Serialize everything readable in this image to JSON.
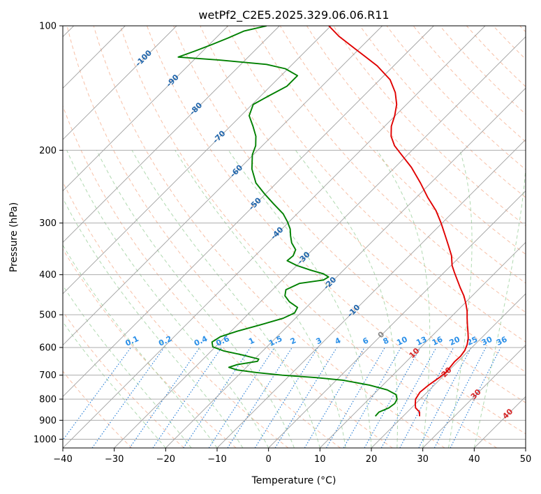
{
  "chart_data": {
    "type": "line",
    "title": "wetPf2_C2E5.2025.329.06.06.R11",
    "xlabel": "Temperature (°C)",
    "ylabel": "Pressure (hPa)",
    "xlim": [
      -40,
      50
    ],
    "ylim": [
      1050,
      100
    ],
    "y_scale": "log",
    "grid": true,
    "x_ticks": [
      -40,
      -30,
      -20,
      -10,
      0,
      10,
      20,
      30,
      40,
      50
    ],
    "y_ticks": [
      100,
      200,
      300,
      400,
      500,
      600,
      700,
      800,
      900,
      1000
    ],
    "skew": 45,
    "colors": {
      "temperature": "#e00000",
      "dewpoint": "#008000",
      "isotherm": "#a0a0a0",
      "dry_adiabat": "#f4a582",
      "moist_adiabat": "#8fc98f",
      "mixing_ratio": "#1e78d4",
      "label_isotherm": "#2166ac",
      "label_mixing": "#2a8fe8",
      "label_warm": "#d62728",
      "label_zero": "#888888"
    },
    "isotherm_labels": [
      {
        "t": -100,
        "text": "-100"
      },
      {
        "t": -90,
        "text": "-90"
      },
      {
        "t": -80,
        "text": "-80"
      },
      {
        "t": -70,
        "text": "-70"
      },
      {
        "t": -60,
        "text": "-60"
      },
      {
        "t": -50,
        "text": "-50"
      },
      {
        "t": -40,
        "text": "-40"
      },
      {
        "t": -30,
        "text": "-30"
      },
      {
        "t": -20,
        "text": "-20"
      },
      {
        "t": -10,
        "text": "-10"
      },
      {
        "t": 0,
        "text": "0"
      },
      {
        "t": 10,
        "text": "10"
      },
      {
        "t": 20,
        "text": "20"
      },
      {
        "t": 30,
        "text": "30"
      },
      {
        "t": 40,
        "text": "40"
      }
    ],
    "mixing_ratios": [
      0.1,
      0.2,
      0.4,
      0.6,
      1,
      1.5,
      2,
      3,
      4,
      6,
      8,
      10,
      13,
      16,
      20,
      25,
      30,
      36
    ],
    "mixing_ratio_labels": [
      "0.1",
      "0.2",
      "0.4",
      "0.6",
      "1",
      "1.5",
      "2",
      "3",
      "4",
      "6",
      "8",
      "10",
      "13",
      "16",
      "20",
      "25",
      "30",
      "36"
    ],
    "series": [
      {
        "name": "",
        "key": "temperature",
        "points": [
          [
            880,
            23.2
          ],
          [
            860,
            22.4
          ],
          [
            840,
            20.8
          ],
          [
            820,
            19.9
          ],
          [
            800,
            19.1
          ],
          [
            770,
            18.6
          ],
          [
            740,
            18.9
          ],
          [
            710,
            19.5
          ],
          [
            690,
            19.8
          ],
          [
            670,
            19.6
          ],
          [
            650,
            19.4
          ],
          [
            630,
            19.5
          ],
          [
            610,
            19.2
          ],
          [
            590,
            18.5
          ],
          [
            570,
            17.5
          ],
          [
            550,
            16.2
          ],
          [
            530,
            14.8
          ],
          [
            510,
            13.4
          ],
          [
            490,
            12.0
          ],
          [
            470,
            10.3
          ],
          [
            450,
            8.4
          ],
          [
            430,
            6.1
          ],
          [
            410,
            3.8
          ],
          [
            395,
            2.0
          ],
          [
            380,
            0.2
          ],
          [
            360,
            -1.8
          ],
          [
            340,
            -4.4
          ],
          [
            320,
            -7.2
          ],
          [
            300,
            -10.2
          ],
          [
            280,
            -13.6
          ],
          [
            260,
            -17.8
          ],
          [
            240,
            -22.0
          ],
          [
            220,
            -26.8
          ],
          [
            205,
            -31.2
          ],
          [
            195,
            -34.3
          ],
          [
            185,
            -36.8
          ],
          [
            175,
            -38.7
          ],
          [
            165,
            -40.1
          ],
          [
            155,
            -41.9
          ],
          [
            145,
            -44.5
          ],
          [
            135,
            -48.0
          ],
          [
            125,
            -53.2
          ],
          [
            118,
            -57.8
          ],
          [
            112,
            -62.0
          ],
          [
            106,
            -66.4
          ],
          [
            100,
            -70.4
          ]
        ]
      },
      {
        "name": "",
        "key": "dewpoint",
        "points": [
          [
            880,
            14.6
          ],
          [
            860,
            14.5
          ],
          [
            840,
            15.6
          ],
          [
            820,
            15.9
          ],
          [
            800,
            15.5
          ],
          [
            780,
            14.4
          ],
          [
            760,
            11.8
          ],
          [
            740,
            7.4
          ],
          [
            720,
            1.3
          ],
          [
            710,
            -4.2
          ],
          [
            700,
            -11.5
          ],
          [
            690,
            -17.0
          ],
          [
            680,
            -21.3
          ],
          [
            670,
            -23.4
          ],
          [
            660,
            -22.3
          ],
          [
            648,
            -19.0
          ],
          [
            640,
            -19.2
          ],
          [
            625,
            -23.3
          ],
          [
            612,
            -27.5
          ],
          [
            598,
            -30.5
          ],
          [
            582,
            -31.6
          ],
          [
            565,
            -31.0
          ],
          [
            548,
            -28.8
          ],
          [
            530,
            -25.7
          ],
          [
            510,
            -22.4
          ],
          [
            495,
            -21.2
          ],
          [
            480,
            -21.7
          ],
          [
            465,
            -24.4
          ],
          [
            450,
            -26.4
          ],
          [
            435,
            -27.4
          ],
          [
            420,
            -26.0
          ],
          [
            412,
            -22.0
          ],
          [
            405,
            -21.6
          ],
          [
            398,
            -23.2
          ],
          [
            390,
            -26.4
          ],
          [
            380,
            -30.0
          ],
          [
            370,
            -32.8
          ],
          [
            360,
            -32.6
          ],
          [
            348,
            -33.3
          ],
          [
            335,
            -35.4
          ],
          [
            322,
            -37.0
          ],
          [
            310,
            -38.4
          ],
          [
            298,
            -40.3
          ],
          [
            285,
            -42.7
          ],
          [
            270,
            -46.4
          ],
          [
            255,
            -50.2
          ],
          [
            240,
            -54.0
          ],
          [
            222,
            -57.5
          ],
          [
            205,
            -60.2
          ],
          [
            195,
            -61.3
          ],
          [
            185,
            -63.1
          ],
          [
            175,
            -65.6
          ],
          [
            165,
            -68.4
          ],
          [
            155,
            -69.8
          ],
          [
            148,
            -68.5
          ],
          [
            140,
            -66.8
          ],
          [
            132,
            -66.8
          ],
          [
            127,
            -70.5
          ],
          [
            124,
            -75.0
          ],
          [
            121,
            -85.0
          ],
          [
            119,
            -93.6
          ],
          [
            115,
            -91.5
          ],
          [
            111,
            -89.5
          ],
          [
            107,
            -87.6
          ],
          [
            103,
            -85.9
          ],
          [
            100,
            -82.5
          ]
        ]
      }
    ]
  }
}
